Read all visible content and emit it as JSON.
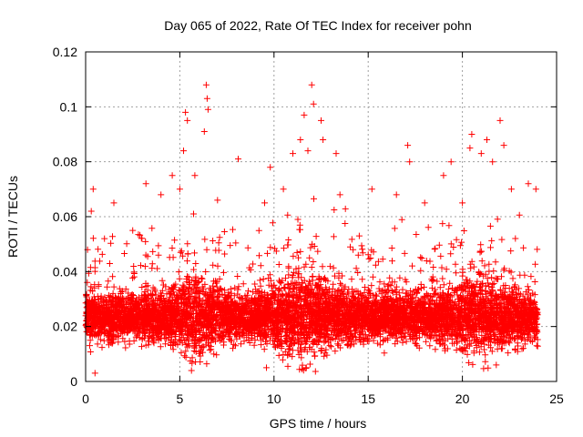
{
  "chart_data": {
    "type": "scatter",
    "title": "Day 065 of 2022, Rate Of TEC Index for receiver pohn",
    "xlabel": "GPS time / hours",
    "ylabel": "ROTI / TECUs",
    "xlim": [
      0,
      25
    ],
    "ylim": [
      0,
      0.12
    ],
    "x_ticks": [
      0,
      5,
      10,
      15,
      20,
      25
    ],
    "x_tick_labels": [
      "0",
      "5",
      "10",
      "15",
      "20",
      "25"
    ],
    "y_ticks": [
      0,
      0.02,
      0.04,
      0.06,
      0.08,
      0.1,
      0.12
    ],
    "y_tick_labels": [
      "0",
      "0.02",
      "0.04",
      "0.06",
      "0.08",
      "0.1",
      "0.12"
    ],
    "grid": true,
    "marker": "+",
    "series": [
      {
        "name": "ROTI",
        "color": "#ff0000",
        "x_range": [
          0,
          24
        ],
        "typical_range": [
          0.01,
          0.045
        ],
        "points": [
          {
            "x": 0.1,
            "y": 0.048
          },
          {
            "x": 0.3,
            "y": 0.062
          },
          {
            "x": 0.4,
            "y": 0.07
          },
          {
            "x": 0.5,
            "y": 0.003
          },
          {
            "x": 1.0,
            "y": 0.052
          },
          {
            "x": 1.5,
            "y": 0.065
          },
          {
            "x": 2.5,
            "y": 0.055
          },
          {
            "x": 3.2,
            "y": 0.072
          },
          {
            "x": 4.0,
            "y": 0.068
          },
          {
            "x": 4.6,
            "y": 0.075
          },
          {
            "x": 5.0,
            "y": 0.07
          },
          {
            "x": 5.2,
            "y": 0.084
          },
          {
            "x": 5.3,
            "y": 0.098
          },
          {
            "x": 5.4,
            "y": 0.095
          },
          {
            "x": 5.8,
            "y": 0.075
          },
          {
            "x": 6.3,
            "y": 0.091
          },
          {
            "x": 6.4,
            "y": 0.108
          },
          {
            "x": 6.45,
            "y": 0.103
          },
          {
            "x": 6.5,
            "y": 0.099
          },
          {
            "x": 7.0,
            "y": 0.066
          },
          {
            "x": 8.1,
            "y": 0.081
          },
          {
            "x": 9.5,
            "y": 0.065
          },
          {
            "x": 9.6,
            "y": 0.005
          },
          {
            "x": 9.8,
            "y": 0.078
          },
          {
            "x": 10.5,
            "y": 0.07
          },
          {
            "x": 11.0,
            "y": 0.083
          },
          {
            "x": 11.4,
            "y": 0.088
          },
          {
            "x": 11.6,
            "y": 0.097
          },
          {
            "x": 11.8,
            "y": 0.084
          },
          {
            "x": 12.0,
            "y": 0.108
          },
          {
            "x": 12.1,
            "y": 0.101
          },
          {
            "x": 12.5,
            "y": 0.095
          },
          {
            "x": 12.6,
            "y": 0.088
          },
          {
            "x": 13.3,
            "y": 0.083
          },
          {
            "x": 13.5,
            "y": 0.068
          },
          {
            "x": 15.2,
            "y": 0.07
          },
          {
            "x": 16.5,
            "y": 0.068
          },
          {
            "x": 17.1,
            "y": 0.086
          },
          {
            "x": 17.2,
            "y": 0.08
          },
          {
            "x": 18.0,
            "y": 0.065
          },
          {
            "x": 19.0,
            "y": 0.075
          },
          {
            "x": 19.4,
            "y": 0.08
          },
          {
            "x": 20.0,
            "y": 0.065
          },
          {
            "x": 20.4,
            "y": 0.085
          },
          {
            "x": 20.5,
            "y": 0.09
          },
          {
            "x": 21.0,
            "y": 0.083
          },
          {
            "x": 21.3,
            "y": 0.088
          },
          {
            "x": 21.6,
            "y": 0.08
          },
          {
            "x": 22.0,
            "y": 0.095
          },
          {
            "x": 22.2,
            "y": 0.086
          },
          {
            "x": 22.6,
            "y": 0.07
          },
          {
            "x": 23.5,
            "y": 0.072
          },
          {
            "x": 23.9,
            "y": 0.07
          },
          {
            "x": 21.8,
            "y": 0.006
          }
        ]
      }
    ]
  }
}
